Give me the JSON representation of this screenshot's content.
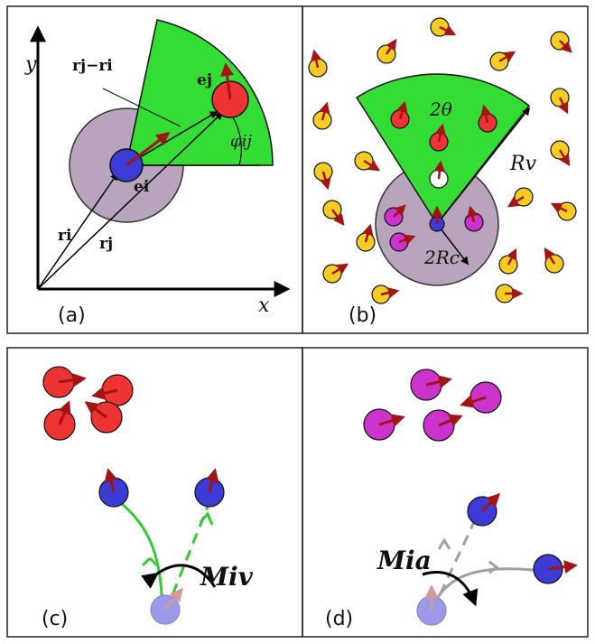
{
  "panels": {
    "a": {
      "tag": "(a)",
      "axis_x": "x",
      "axis_y": "y",
      "label_rj_minus_ri": "rj−ri",
      "label_ej": "ej",
      "label_ei": "ei",
      "label_ri": "ri",
      "label_rj": "rj",
      "label_phi": "φij"
    },
    "b": {
      "tag": "(b)",
      "label_2theta": "2θ",
      "label_Rv": "Rv",
      "label_2Rc": "2Rc"
    },
    "c": {
      "tag": "(c)",
      "label_M": "Miv"
    },
    "d": {
      "tag": "(d)",
      "label_M": "Mia"
    }
  },
  "colors": {
    "vision_cone": "#33dd33",
    "repulsion_disk": "#b8a4bd",
    "focal": "#3d3bd6",
    "red_particle": "#ee3333",
    "magenta_particle": "#cc33cc",
    "yellow_particle": "#f4cc22",
    "arrow": "#a31515",
    "green_path": "#33cc33",
    "gray_path": "#a0a0a0"
  }
}
